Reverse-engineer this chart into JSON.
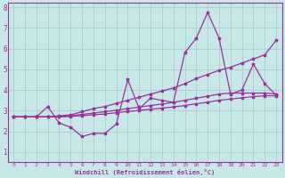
{
  "bg_color": "#c8e8e8",
  "grid_color": "#aacccc",
  "line_color": "#993399",
  "xlabel": "Windchill (Refroidissement éolien,°C)",
  "xlim": [
    -0.5,
    23.5
  ],
  "ylim": [
    0.5,
    8.2
  ],
  "xticks": [
    0,
    1,
    2,
    3,
    4,
    5,
    6,
    7,
    8,
    9,
    10,
    11,
    12,
    13,
    14,
    15,
    16,
    17,
    18,
    19,
    20,
    21,
    22,
    23
  ],
  "yticks": [
    1,
    2,
    3,
    4,
    5,
    6,
    7,
    8
  ],
  "x": [
    0,
    1,
    2,
    3,
    4,
    5,
    6,
    7,
    8,
    9,
    10,
    11,
    12,
    13,
    14,
    15,
    16,
    17,
    18,
    19,
    20,
    21,
    22,
    23
  ],
  "zigzag_y": [
    2.7,
    2.7,
    2.7,
    3.2,
    2.4,
    2.2,
    1.75,
    1.9,
    1.9,
    2.35,
    4.5,
    3.1,
    3.6,
    3.5,
    3.4,
    5.8,
    6.5,
    7.75,
    6.5,
    3.8,
    4.0,
    5.25,
    4.3,
    3.75
  ],
  "upper_y": [
    2.7,
    2.7,
    2.7,
    2.7,
    2.75,
    2.8,
    2.95,
    3.1,
    3.2,
    3.35,
    3.5,
    3.65,
    3.8,
    3.95,
    4.1,
    4.3,
    4.55,
    4.75,
    4.95,
    5.1,
    5.3,
    5.5,
    5.7,
    6.4
  ],
  "mid_y": [
    2.7,
    2.7,
    2.7,
    2.7,
    2.72,
    2.76,
    2.82,
    2.88,
    2.95,
    3.02,
    3.1,
    3.17,
    3.25,
    3.32,
    3.4,
    3.5,
    3.6,
    3.7,
    3.8,
    3.85,
    3.85,
    3.85,
    3.85,
    3.8
  ],
  "lower_y": [
    2.7,
    2.7,
    2.7,
    2.7,
    2.7,
    2.72,
    2.76,
    2.8,
    2.84,
    2.9,
    2.96,
    3.01,
    3.07,
    3.12,
    3.18,
    3.25,
    3.33,
    3.41,
    3.5,
    3.56,
    3.62,
    3.68,
    3.72,
    3.72
  ]
}
